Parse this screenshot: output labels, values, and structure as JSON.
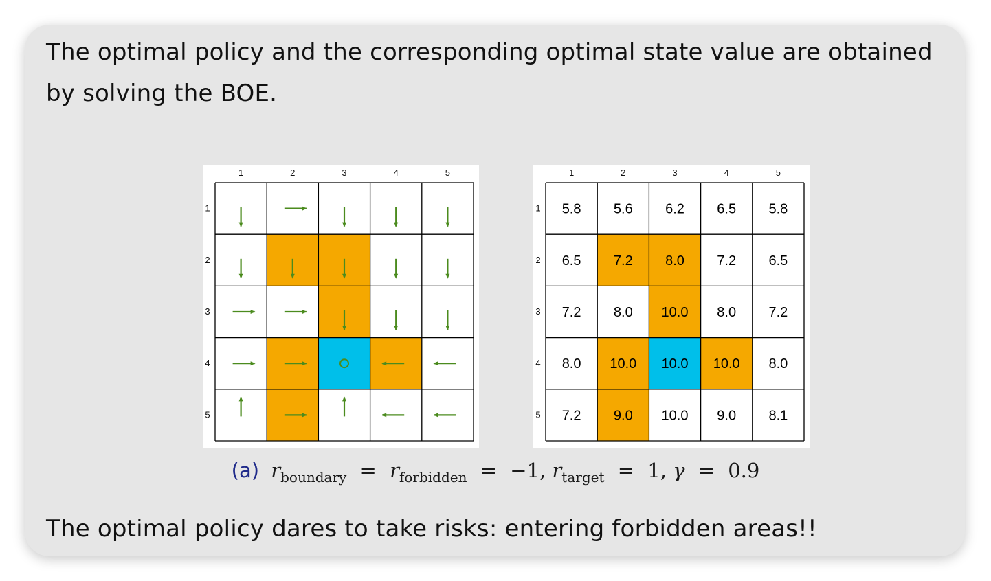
{
  "intro_text": "The optimal policy and the corresponding optimal state value are obtained by solving the BOE.",
  "outro_text": "The optimal policy dares to take risks: entering forbidden areas!!",
  "colors": {
    "forbidden": "#f5a800",
    "target": "#00bfea",
    "arrow": "#4b8b1e",
    "grid_line": "#000000"
  },
  "grid": {
    "column_labels": [
      "1",
      "2",
      "3",
      "4",
      "5"
    ],
    "row_labels": [
      "1",
      "2",
      "3",
      "4",
      "5"
    ],
    "cell_types": [
      [
        "normal",
        "normal",
        "normal",
        "normal",
        "normal"
      ],
      [
        "normal",
        "forbidden",
        "forbidden",
        "normal",
        "normal"
      ],
      [
        "normal",
        "normal",
        "forbidden",
        "normal",
        "normal"
      ],
      [
        "normal",
        "forbidden",
        "target",
        "forbidden",
        "normal"
      ],
      [
        "normal",
        "forbidden",
        "normal",
        "normal",
        "normal"
      ]
    ]
  },
  "policy": [
    [
      "down",
      "right",
      "down",
      "down",
      "down"
    ],
    [
      "down",
      "down",
      "down",
      "down",
      "down"
    ],
    [
      "right",
      "right",
      "down",
      "down",
      "down"
    ],
    [
      "right",
      "right",
      "stay",
      "left",
      "left"
    ],
    [
      "up",
      "right",
      "up",
      "left",
      "left"
    ]
  ],
  "state_values": [
    [
      "5.8",
      "5.6",
      "6.2",
      "6.5",
      "5.8"
    ],
    [
      "6.5",
      "7.2",
      "8.0",
      "7.2",
      "6.5"
    ],
    [
      "7.2",
      "8.0",
      "10.0",
      "8.0",
      "7.2"
    ],
    [
      "8.0",
      "10.0",
      "10.0",
      "10.0",
      "8.0"
    ],
    [
      "7.2",
      "9.0",
      "10.0",
      "9.0",
      "8.1"
    ]
  ],
  "caption": {
    "tag": "(a)",
    "r_symbol": "r",
    "sub_boundary": "boundary",
    "sub_forbidden": "forbidden",
    "sub_target": "target",
    "equals": "=",
    "value_negative": "−1,",
    "value_target": "1,",
    "gamma_symbol": "γ",
    "gamma_value": "0.9"
  }
}
